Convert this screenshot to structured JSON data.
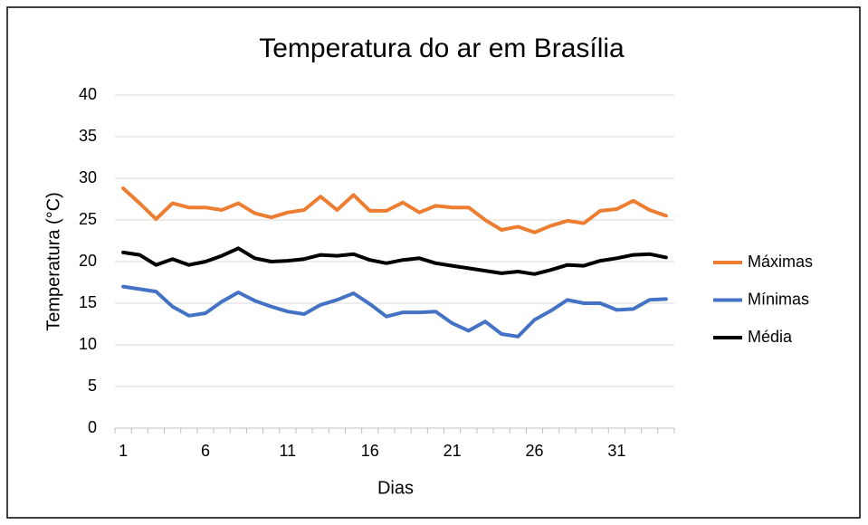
{
  "chart_data": {
    "type": "line",
    "title": "Temperatura do ar em Brasília",
    "x_label": "Dias",
    "y_label": "Temperatura (°C)",
    "categories": [
      1,
      null,
      null,
      null,
      null,
      6,
      null,
      null,
      null,
      null,
      11,
      null,
      null,
      null,
      null,
      16,
      null,
      null,
      null,
      null,
      21,
      null,
      null,
      null,
      null,
      26,
      null,
      null,
      null,
      null,
      31,
      null,
      null,
      null
    ],
    "series": [
      {
        "name": "Máximas",
        "color": "#ed7d31",
        "values": [
          28.8,
          27.0,
          25.1,
          27.0,
          26.5,
          26.5,
          26.2,
          27.0,
          25.8,
          25.3,
          25.9,
          26.2,
          27.8,
          26.2,
          28.0,
          26.1,
          26.1,
          27.1,
          25.9,
          26.7,
          26.5,
          26.5,
          25.0,
          23.8,
          24.2,
          23.5,
          24.3,
          24.9,
          24.6,
          26.1,
          26.3,
          27.3,
          26.2,
          25.5
        ]
      },
      {
        "name": "Mínimas",
        "color": "#4472c4",
        "values": [
          17.0,
          16.7,
          16.4,
          14.6,
          13.5,
          13.8,
          15.2,
          16.3,
          15.3,
          14.6,
          14.0,
          13.7,
          14.8,
          15.4,
          16.2,
          14.9,
          13.4,
          13.9,
          13.9,
          14.0,
          12.6,
          11.7,
          12.8,
          11.3,
          11.0,
          13.0,
          14.1,
          15.4,
          15.0,
          15.0,
          14.2,
          14.3,
          15.4,
          15.5
        ]
      },
      {
        "name": "Média",
        "color": "#000000",
        "values": [
          21.1,
          20.8,
          19.6,
          20.3,
          19.6,
          20.0,
          20.7,
          21.6,
          20.4,
          20.0,
          20.1,
          20.3,
          20.8,
          20.7,
          20.9,
          20.2,
          19.8,
          20.2,
          20.4,
          19.8,
          19.5,
          19.2,
          18.9,
          18.6,
          18.8,
          18.5,
          19.0,
          19.6,
          19.5,
          20.1,
          20.4,
          20.8,
          20.9,
          20.5
        ]
      }
    ],
    "ylim": [
      0,
      40
    ],
    "yticks": [
      0,
      5,
      10,
      15,
      20,
      25,
      30,
      35,
      40
    ],
    "grid": true,
    "legend": "right"
  }
}
